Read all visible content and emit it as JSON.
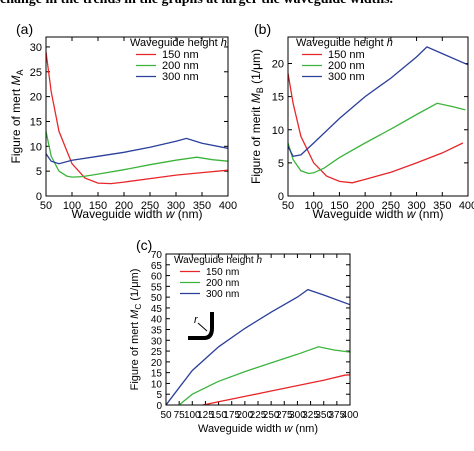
{
  "header_text": "change in the trends in the graphs at larger the waveguide widths.",
  "colors": {
    "h150": "#e8262a",
    "h200": "#3cb43c",
    "h300": "#2a3f9a"
  },
  "chart_data": [
    {
      "type": "line",
      "panel_label": "(a)",
      "xlabel": "Waveguide width w (nm)",
      "ylabel": "Figure of mert M_A",
      "xlim": [
        50,
        400
      ],
      "ylim": [
        0,
        32
      ],
      "xticks": [
        50,
        100,
        150,
        200,
        250,
        300,
        350,
        400
      ],
      "yticks": [
        0,
        5,
        10,
        15,
        20,
        25,
        30
      ],
      "legend_title": "Waveguide height h",
      "legend_position": "top-right",
      "series": [
        {
          "name": "150 nm",
          "color": "#e8262a",
          "x": [
            50,
            60,
            75,
            100,
            125,
            150,
            175,
            200,
            250,
            300,
            350,
            400
          ],
          "y": [
            29,
            21,
            13,
            6.5,
            3.6,
            2.6,
            2.5,
            2.8,
            3.5,
            4.2,
            4.7,
            5.2
          ]
        },
        {
          "name": "200 nm",
          "color": "#3cb43c",
          "x": [
            50,
            60,
            75,
            90,
            100,
            120,
            150,
            200,
            250,
            300,
            340,
            370,
            400
          ],
          "y": [
            13,
            8,
            5,
            4,
            3.8,
            3.9,
            4.4,
            5.3,
            6.3,
            7.2,
            7.8,
            7.3,
            7.0
          ]
        },
        {
          "name": "300 nm",
          "color": "#2a3f9a",
          "x": [
            50,
            60,
            75,
            100,
            150,
            200,
            250,
            300,
            320,
            350,
            400
          ],
          "y": [
            8.5,
            7,
            6.5,
            7.2,
            8,
            8.8,
            9.8,
            11,
            11.6,
            10.6,
            9.6
          ]
        }
      ]
    },
    {
      "type": "line",
      "panel_label": "(b)",
      "xlabel": "Waveguide width w (nm)",
      "ylabel": "Figure of merit M_B (1/μm)",
      "xlim": [
        50,
        400
      ],
      "ylim": [
        0,
        24
      ],
      "xticks": [
        50,
        100,
        150,
        200,
        250,
        300,
        350,
        400
      ],
      "yticks": [
        0,
        5,
        10,
        15,
        20
      ],
      "legend_title": "Waveguide height h",
      "legend_position": "top-right",
      "series": [
        {
          "name": "150 nm",
          "color": "#e8262a",
          "x": [
            50,
            60,
            75,
            100,
            125,
            150,
            175,
            200,
            250,
            300,
            350,
            390
          ],
          "y": [
            18.5,
            14,
            9,
            5,
            3,
            2.2,
            2,
            2.5,
            3.6,
            5,
            6.5,
            8
          ]
        },
        {
          "name": "200 nm",
          "color": "#3cb43c",
          "x": [
            50,
            60,
            75,
            90,
            100,
            120,
            150,
            200,
            250,
            300,
            340,
            370,
            395
          ],
          "y": [
            8,
            5.5,
            3.8,
            3.4,
            3.5,
            4.2,
            5.8,
            8,
            10.1,
            12.3,
            14,
            13.5,
            13
          ]
        },
        {
          "name": "300 nm",
          "color": "#2a3f9a",
          "x": [
            50,
            60,
            75,
            100,
            150,
            200,
            250,
            300,
            320,
            350,
            400
          ],
          "y": [
            7.5,
            6,
            6.2,
            8,
            11.7,
            15,
            17.8,
            21,
            22.5,
            21.5,
            19.8
          ]
        }
      ]
    },
    {
      "type": "line",
      "panel_label": "(c)",
      "xlabel": "Waveguide width w (nm)",
      "ylabel": "Figure of mert M_C (1/μm)",
      "xlim": [
        50,
        400
      ],
      "ylim": [
        0,
        70
      ],
      "xticks": [
        50,
        75,
        100,
        125,
        150,
        175,
        200,
        225,
        250,
        275,
        300,
        325,
        350,
        375,
        400
      ],
      "yticks": [
        0,
        5,
        10,
        15,
        20,
        25,
        30,
        35,
        40,
        45,
        50,
        55,
        60,
        65,
        70
      ],
      "legend_title": "Waveguide height h",
      "legend_position": "top-left",
      "inset_label": "r",
      "series": [
        {
          "name": "150 nm",
          "color": "#e8262a",
          "x": [
            120,
            150,
            200,
            250,
            300,
            350,
            390,
            400
          ],
          "y": [
            0,
            1.5,
            4,
            6.5,
            9,
            11.5,
            13.8,
            14
          ]
        },
        {
          "name": "200 nm",
          "color": "#3cb43c",
          "x": [
            75,
            100,
            150,
            200,
            250,
            300,
            340,
            370,
            400
          ],
          "y": [
            0,
            5,
            11,
            15.5,
            19.5,
            23.5,
            27,
            25.5,
            24.5
          ]
        },
        {
          "name": "300 nm",
          "color": "#2a3f9a",
          "x": [
            50,
            75,
            100,
            150,
            200,
            250,
            300,
            320,
            350,
            400
          ],
          "y": [
            0,
            8,
            16,
            27,
            35.5,
            43,
            50,
            53.5,
            51,
            46.5
          ]
        }
      ]
    }
  ]
}
